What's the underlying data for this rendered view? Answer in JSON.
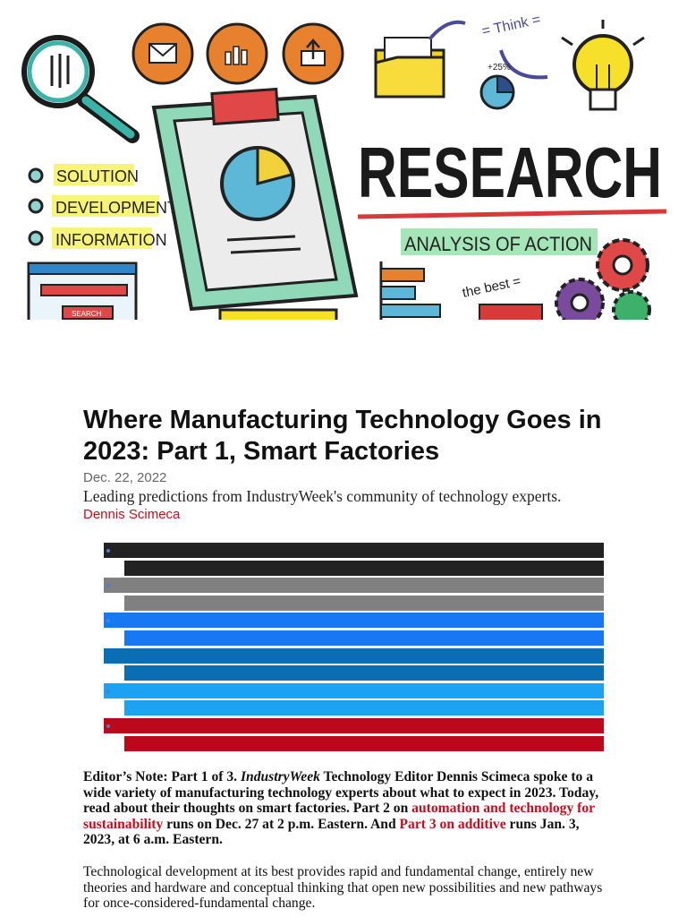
{
  "hero": {
    "headline": "RESEARCH",
    "subtitle": "ANALYSIS OF ACTION",
    "list": [
      "SOLUTION",
      "DEVELOPMENT",
      "INFORMATION"
    ],
    "think_label": "= Think =",
    "best_label": "the best =",
    "search_label": "SEARCH",
    "percent_label": "+25%"
  },
  "article": {
    "title": "Where Manufacturing Technology Goes in 2023: Part 1, Smart Factories",
    "date": "Dec. 22, 2022",
    "deck": "Leading predictions from IndustryWeek's community of technology experts.",
    "author": "Dennis Scimeca"
  },
  "share_bars": [
    {
      "color": "#222222",
      "indent": false,
      "dot": true
    },
    {
      "color": "#222222",
      "indent": true,
      "dot": false
    },
    {
      "color": "#808080",
      "indent": false,
      "dot": true
    },
    {
      "color": "#808080",
      "indent": true,
      "dot": false
    },
    {
      "color": "#1877f2",
      "indent": false,
      "dot": true
    },
    {
      "color": "#1877f2",
      "indent": true,
      "dot": false
    },
    {
      "color": "#0a6eb5",
      "indent": false,
      "dot": false
    },
    {
      "color": "#0a6eb5",
      "indent": true,
      "dot": false
    },
    {
      "color": "#1da1f2",
      "indent": false,
      "dot": true
    },
    {
      "color": "#1da1f2",
      "indent": true,
      "dot": false
    },
    {
      "color": "#bd081c",
      "indent": false,
      "dot": true
    },
    {
      "color": "#bd081c",
      "indent": true,
      "dot": false
    }
  ],
  "editor_note": {
    "part1": "Editor’s Note: Part 1 of 3. ",
    "publication": "IndustryWeek",
    "part2": " Technology Editor Dennis Scimeca spoke to a wide variety of manufacturing technology experts about what to expect in 2023. Today, read about their thoughts on smart factories. Part 2 on ",
    "link1": "automation and technology for sustainability",
    "part3": " runs on Dec. 27 at 2 p.m. Eastern. And ",
    "link2": "Part 3 on additive",
    "part4": " runs Jan. 3, 2023, at 6 a.m. Eastern."
  },
  "body_text": "Technological development at its best provides rapid and fundamental change, entirely new theories and hardware and conceptual thinking that open new possibilities and new pathways for once-considered-fundamental change."
}
